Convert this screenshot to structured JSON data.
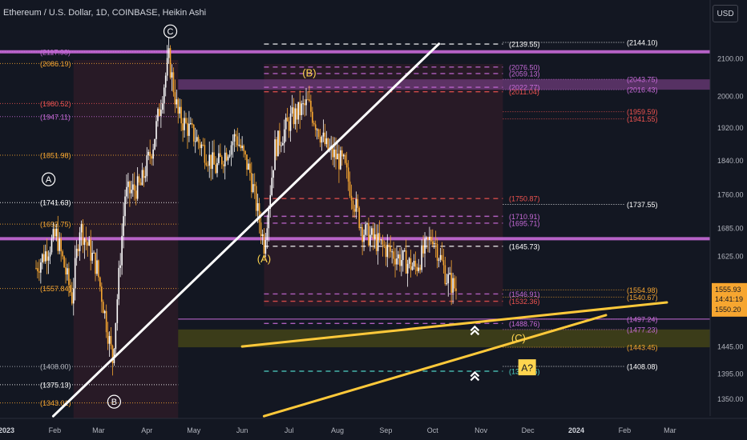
{
  "header": {
    "title": "Ethereum / U.S. Dollar, 1D, COINBASE, Heikin Ashi",
    "currency_button": "USD"
  },
  "colors": {
    "background": "#131722",
    "bull": "#ffffff",
    "bear": "#f7a630",
    "purple_line": "#c86bd9",
    "purple_band": "#6d3b7a",
    "olive_zone": "#4a4a17",
    "trend_white": "#ffffff",
    "trend_yellow": "#ffc93a",
    "shade": "#3a1d2a",
    "current_price_tag": "#f7a630",
    "label_yellow": "#ffd54f"
  },
  "chart_data": {
    "type": "line",
    "title": "Ethereum / U.S. Dollar, 1D, COINBASE, Heikin Ashi",
    "y_scale": "log",
    "ylim": [
      1300,
      2200
    ],
    "x_tick_labels": [
      "2023",
      "Feb",
      "Mar",
      "Apr",
      "May",
      "Jun",
      "Jul",
      "Aug",
      "Sep",
      "Oct",
      "Nov",
      "Dec",
      "2024",
      "Feb",
      "Mar"
    ],
    "y_tick_labels": [
      "2100.00",
      "2000.00",
      "1920.00",
      "1840.00",
      "1760.00",
      "1685.00",
      "1625.00",
      "1555.93",
      "1445.00",
      "1395.00",
      "1350.00"
    ],
    "price_path": [
      {
        "date": "2023-01-20",
        "price": 1600
      },
      {
        "date": "2023-02-02",
        "price": 1670
      },
      {
        "date": "2023-02-12",
        "price": 1540
      },
      {
        "date": "2023-02-17",
        "price": 1690
      },
      {
        "date": "2023-02-28",
        "price": 1600
      },
      {
        "date": "2023-03-10",
        "price": 1420
      },
      {
        "date": "2023-03-18",
        "price": 1760
      },
      {
        "date": "2023-03-28",
        "price": 1780
      },
      {
        "date": "2023-04-05",
        "price": 1880
      },
      {
        "date": "2023-04-15",
        "price": 2100
      },
      {
        "date": "2023-04-21",
        "price": 1950
      },
      {
        "date": "2023-05-05",
        "price": 1880
      },
      {
        "date": "2023-05-15",
        "price": 1820
      },
      {
        "date": "2023-05-28",
        "price": 1900
      },
      {
        "date": "2023-06-06",
        "price": 1810
      },
      {
        "date": "2023-06-15",
        "price": 1650
      },
      {
        "date": "2023-06-22",
        "price": 1870
      },
      {
        "date": "2023-07-02",
        "price": 1940
      },
      {
        "date": "2023-07-13",
        "price": 1980
      },
      {
        "date": "2023-07-25",
        "price": 1870
      },
      {
        "date": "2023-08-05",
        "price": 1830
      },
      {
        "date": "2023-08-17",
        "price": 1680
      },
      {
        "date": "2023-08-28",
        "price": 1650
      },
      {
        "date": "2023-09-10",
        "price": 1620
      },
      {
        "date": "2023-09-20",
        "price": 1600
      },
      {
        "date": "2023-10-01",
        "price": 1670
      },
      {
        "date": "2023-10-10",
        "price": 1580
      },
      {
        "date": "2023-10-16",
        "price": 1556
      }
    ],
    "current_price": {
      "value": "1555.93",
      "countdown": "14:41:19",
      "sub": "1550.20"
    },
    "wave_labels": [
      {
        "text": "A",
        "date": "2023-01-28",
        "price": 1795,
        "style": "circle"
      },
      {
        "text": "B",
        "date": "2023-03-11",
        "price": 1345,
        "style": "circle"
      },
      {
        "text": "C",
        "date": "2023-04-16",
        "price": 2175,
        "style": "circle"
      },
      {
        "text": "(A)",
        "date": "2023-06-15",
        "price": 1618,
        "style": "yellow"
      },
      {
        "text": "(B)",
        "date": "2023-07-14",
        "price": 2060,
        "style": "yellow"
      },
      {
        "text": "(C)",
        "date": "2023-11-25",
        "price": 1460,
        "style": "yellow"
      },
      {
        "text": "A?",
        "date": "2023-11-30",
        "price": 1405,
        "style": "box"
      }
    ],
    "left_levels": [
      {
        "text": "(2117.98)",
        "price": 2117.98,
        "color": "#c86bd9"
      },
      {
        "text": "(2086.19)",
        "price": 2086.19,
        "color": "#f7a630"
      },
      {
        "text": "(1980.52)",
        "price": 1980.52,
        "color": "#ef5350"
      },
      {
        "text": "(1947.11)",
        "price": 1947.11,
        "color": "#c86bd9"
      },
      {
        "text": "(1851.98)",
        "price": 1851.98,
        "color": "#f7a630"
      },
      {
        "text": "(1741.63)",
        "price": 1741.63,
        "color": "#ffffff"
      },
      {
        "text": "(1693.75)",
        "price": 1693.75,
        "color": "#f7a630"
      },
      {
        "text": "(1557.84)",
        "price": 1557.84,
        "color": "#f7a630"
      },
      {
        "text": "(1408.00)",
        "price": 1408.0,
        "color": "#b2b5be"
      },
      {
        "text": "(1375.13)",
        "price": 1375.13,
        "color": "#ffffff"
      },
      {
        "text": "(1343.01)",
        "price": 1343.01,
        "color": "#f7a630"
      }
    ],
    "mid_levels": [
      {
        "text": "(2139.55)",
        "price": 2139.55,
        "color": "#ffffff"
      },
      {
        "text": "(2076.50)",
        "price": 2076.5,
        "color": "#c86bd9"
      },
      {
        "text": "(2059.13)",
        "price": 2059.13,
        "color": "#c86bd9"
      },
      {
        "text": "(2022.77)",
        "price": 2022.77,
        "color": "#c86bd9"
      },
      {
        "text": "(2011.04)",
        "price": 2011.04,
        "color": "#ef5350"
      },
      {
        "text": "(1750.87)",
        "price": 1750.87,
        "color": "#ef5350"
      },
      {
        "text": "(1710.91)",
        "price": 1710.91,
        "color": "#c86bd9"
      },
      {
        "text": "(1695.71)",
        "price": 1695.71,
        "color": "#c86bd9"
      },
      {
        "text": "(1645.73)",
        "price": 1645.73,
        "color": "#ffffff"
      },
      {
        "text": "(1546.91)",
        "price": 1546.91,
        "color": "#c86bd9"
      },
      {
        "text": "(1532.36)",
        "price": 1532.36,
        "color": "#ef5350"
      },
      {
        "text": "(1488.76)",
        "price": 1488.76,
        "color": "#c86bd9"
      },
      {
        "text": "(1399.36)",
        "price": 1399.36,
        "color": "#4dd0c4"
      }
    ],
    "right_levels": [
      {
        "text": "(2144.10)",
        "price": 2144.1,
        "color": "#ffffff"
      },
      {
        "text": "(2043.75)",
        "price": 2043.75,
        "color": "#c86bd9"
      },
      {
        "text": "(2016.43)",
        "price": 2016.43,
        "color": "#c86bd9"
      },
      {
        "text": "(1959.59)",
        "price": 1959.59,
        "color": "#ef5350"
      },
      {
        "text": "(1941.55)",
        "price": 1941.55,
        "color": "#ef5350"
      },
      {
        "text": "(1737.55)",
        "price": 1737.55,
        "color": "#ffffff"
      },
      {
        "text": "(1554.98)",
        "price": 1554.98,
        "color": "#f7a630"
      },
      {
        "text": "(1540.67)",
        "price": 1540.67,
        "color": "#f7a630"
      },
      {
        "text": "(1497.24)",
        "price": 1497.24,
        "color": "#c86bd9"
      },
      {
        "text": "(1477.23)",
        "price": 1477.23,
        "color": "#c86bd9"
      },
      {
        "text": "(1443.45)",
        "price": 1443.45,
        "color": "#f7a630"
      },
      {
        "text": "(1408.08)",
        "price": 1408.08,
        "color": "#ffffff"
      }
    ],
    "trendlines": [
      {
        "name": "white-trendline",
        "from": {
          "date": "2023-01-31",
          "price": 1320
        },
        "to": {
          "date": "2023-10-05",
          "price": 2140
        }
      },
      {
        "name": "yellow-trendline-upper",
        "from": {
          "date": "2023-06-01",
          "price": 1445
        },
        "to": {
          "date": "2024-02-28",
          "price": 1530
        }
      },
      {
        "name": "yellow-trendline-lower",
        "from": {
          "date": "2023-06-15",
          "price": 1320
        },
        "to": {
          "date": "2024-01-20",
          "price": 1505
        }
      }
    ],
    "zones": [
      {
        "name": "purple-resistance-band",
        "from": 2043.75,
        "to": 2016.43
      },
      {
        "name": "olive-support-zone",
        "from": 1477.23,
        "to": 1443.45
      }
    ],
    "horizontal_lines": [
      2117.98,
      1662
    ],
    "markers": [
      {
        "name": "double-chevron-up-icon",
        "date": "2023-10-28",
        "price": 1475
      },
      {
        "name": "double-chevron-up-icon",
        "date": "2023-10-28",
        "price": 1390
      }
    ]
  }
}
